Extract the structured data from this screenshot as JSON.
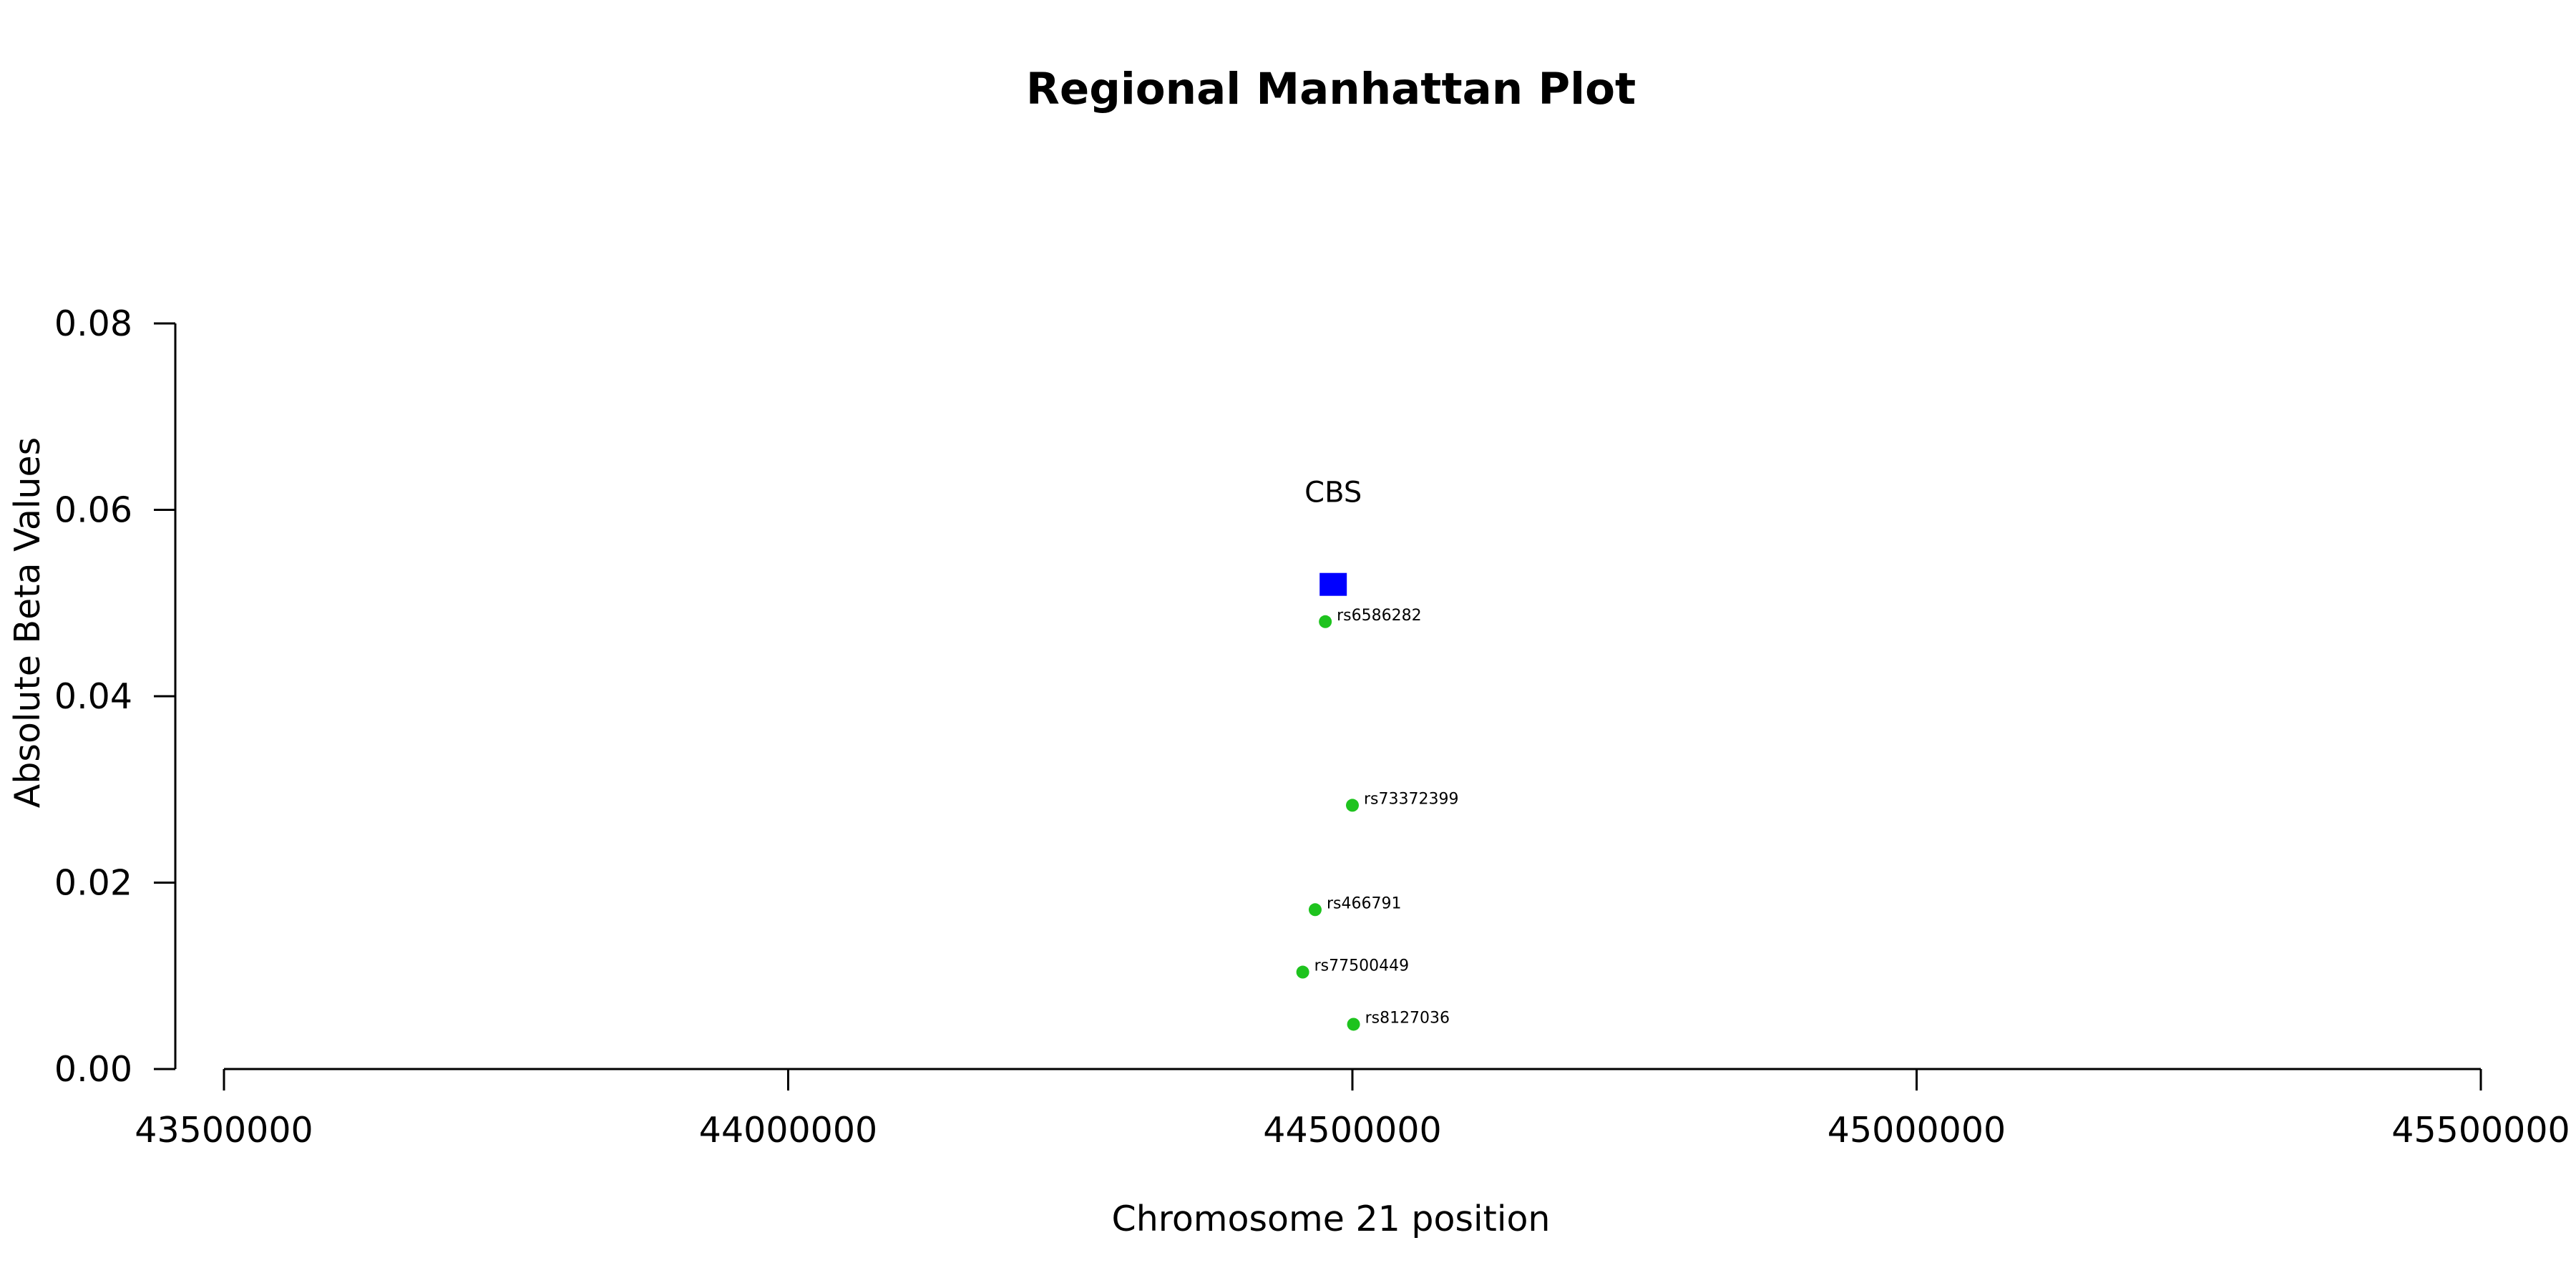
{
  "chart_data": {
    "type": "scatter",
    "title": "Regional Manhattan Plot",
    "xlabel": "Chromosome 21 position",
    "ylabel": "Absolute Beta Values",
    "xlim": [
      43500000,
      45500000
    ],
    "ylim": [
      0,
      0.08
    ],
    "x_ticks": [
      43500000,
      44000000,
      44500000,
      45000000,
      45500000
    ],
    "x_tick_labels": [
      "43500000",
      "44000000",
      "44500000",
      "45000000",
      "45500000"
    ],
    "y_ticks": [
      0,
      0.02,
      0.04,
      0.06,
      0.08
    ],
    "y_tick_labels": [
      "0.00",
      "0.02",
      "0.04",
      "0.06",
      "0.08"
    ],
    "grid": false,
    "series": [
      {
        "marker": "circle",
        "color": "#1ec31e",
        "points": [
          {
            "label": "rs6586282",
            "x": 44476000,
            "y": 0.048
          },
          {
            "label": "rs73372399",
            "x": 44500000,
            "y": 0.0283
          },
          {
            "label": "rs466791",
            "x": 44467000,
            "y": 0.0171
          },
          {
            "label": "rs77500449",
            "x": 44456000,
            "y": 0.0104
          },
          {
            "label": "rs8127036",
            "x": 44501000,
            "y": 0.0048
          }
        ]
      }
    ],
    "annotations": [
      {
        "type": "gene",
        "label": "CBS",
        "x": 44483000,
        "y": 0.052,
        "marker": "square",
        "color": "#0000ff"
      }
    ]
  }
}
